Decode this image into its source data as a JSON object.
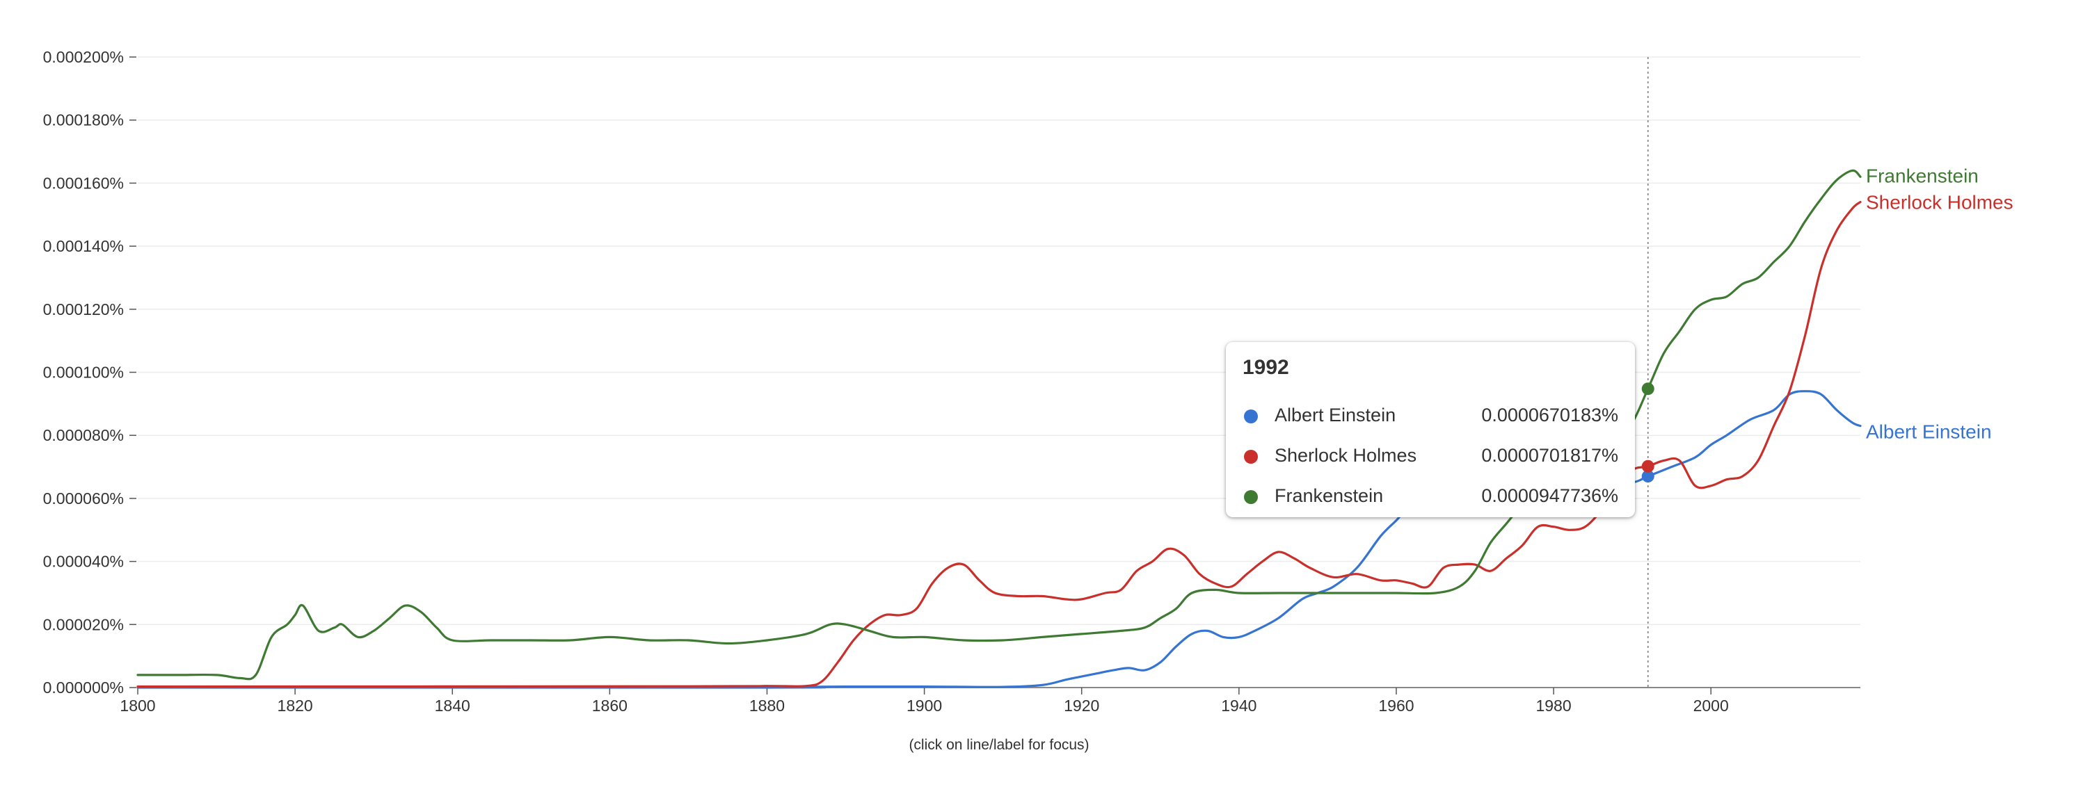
{
  "chart_data": {
    "type": "line",
    "x_range": [
      1800,
      2019
    ],
    "ylim": [
      0,
      0.0002
    ],
    "y_ticks": [
      "0.000200%",
      "0.000180%",
      "0.000160%",
      "0.000140%",
      "0.000120%",
      "0.000100%",
      "0.000080%",
      "0.000060%",
      "0.000040%",
      "0.000020%",
      "0.000000%"
    ],
    "x_ticks": [
      "1800",
      "1820",
      "1840",
      "1860",
      "1880",
      "1900",
      "1920",
      "1940",
      "1960",
      "1980",
      "2000"
    ],
    "grid": "horizontal",
    "focus_year": 1992,
    "note": "(click on line/label for focus)",
    "series": [
      {
        "name": "Albert Einstein",
        "color": "#3674d1",
        "points": [
          [
            1800,
            0
          ],
          [
            1880,
            0
          ],
          [
            1885,
            2e-07
          ],
          [
            1890,
            3e-07
          ],
          [
            1900,
            3e-07
          ],
          [
            1910,
            2e-07
          ],
          [
            1915,
            8e-07
          ],
          [
            1918,
            2.5e-06
          ],
          [
            1920,
            3.5e-06
          ],
          [
            1922,
            4.5e-06
          ],
          [
            1924,
            5.5e-06
          ],
          [
            1926,
            6.2e-06
          ],
          [
            1928,
            5.5e-06
          ],
          [
            1930,
            8e-06
          ],
          [
            1932,
            1.3e-05
          ],
          [
            1934,
            1.7e-05
          ],
          [
            1936,
            1.8e-05
          ],
          [
            1938,
            1.6e-05
          ],
          [
            1940,
            1.6e-05
          ],
          [
            1942,
            1.8e-05
          ],
          [
            1945,
            2.2e-05
          ],
          [
            1948,
            2.8e-05
          ],
          [
            1950,
            3e-05
          ],
          [
            1952,
            3.2e-05
          ],
          [
            1955,
            3.8e-05
          ],
          [
            1958,
            4.8e-05
          ],
          [
            1960,
            5.3e-05
          ],
          [
            1962,
            5.8e-05
          ],
          [
            1965,
            6e-05
          ],
          [
            1970,
            6e-05
          ],
          [
            1975,
            6.1e-05
          ],
          [
            1980,
            6.2e-05
          ],
          [
            1985,
            6.3e-05
          ],
          [
            1990,
            6.5e-05
          ],
          [
            1992,
            6.70183e-05
          ],
          [
            1995,
            7e-05
          ],
          [
            1998,
            7.3e-05
          ],
          [
            2000,
            7.7e-05
          ],
          [
            2002,
            8e-05
          ],
          [
            2005,
            8.5e-05
          ],
          [
            2008,
            8.8e-05
          ],
          [
            2010,
            9.3e-05
          ],
          [
            2012,
            9.4e-05
          ],
          [
            2014,
            9.3e-05
          ],
          [
            2016,
            8.8e-05
          ],
          [
            2018,
            8.4e-05
          ],
          [
            2019,
            8.3e-05
          ]
        ]
      },
      {
        "name": "Sherlock Holmes",
        "color": "#c9302c",
        "points": [
          [
            1800,
            3e-07
          ],
          [
            1870,
            4e-07
          ],
          [
            1880,
            5e-07
          ],
          [
            1885,
            5e-07
          ],
          [
            1887,
            2e-06
          ],
          [
            1889,
            8e-06
          ],
          [
            1891,
            1.5e-05
          ],
          [
            1893,
            2e-05
          ],
          [
            1895,
            2.3e-05
          ],
          [
            1897,
            2.3e-05
          ],
          [
            1899,
            2.5e-05
          ],
          [
            1901,
            3.3e-05
          ],
          [
            1903,
            3.8e-05
          ],
          [
            1905,
            3.9e-05
          ],
          [
            1907,
            3.4e-05
          ],
          [
            1909,
            3e-05
          ],
          [
            1912,
            2.9e-05
          ],
          [
            1915,
            2.9e-05
          ],
          [
            1918,
            2.8e-05
          ],
          [
            1920,
            2.8e-05
          ],
          [
            1923,
            3e-05
          ],
          [
            1925,
            3.1e-05
          ],
          [
            1927,
            3.7e-05
          ],
          [
            1929,
            4e-05
          ],
          [
            1931,
            4.4e-05
          ],
          [
            1933,
            4.2e-05
          ],
          [
            1935,
            3.6e-05
          ],
          [
            1937,
            3.3e-05
          ],
          [
            1939,
            3.2e-05
          ],
          [
            1941,
            3.6e-05
          ],
          [
            1943,
            4e-05
          ],
          [
            1945,
            4.3e-05
          ],
          [
            1947,
            4.1e-05
          ],
          [
            1949,
            3.8e-05
          ],
          [
            1952,
            3.5e-05
          ],
          [
            1955,
            3.6e-05
          ],
          [
            1958,
            3.4e-05
          ],
          [
            1960,
            3.4e-05
          ],
          [
            1962,
            3.3e-05
          ],
          [
            1964,
            3.2e-05
          ],
          [
            1966,
            3.8e-05
          ],
          [
            1968,
            3.9e-05
          ],
          [
            1970,
            3.9e-05
          ],
          [
            1972,
            3.7e-05
          ],
          [
            1974,
            4.1e-05
          ],
          [
            1976,
            4.5e-05
          ],
          [
            1978,
            5.1e-05
          ],
          [
            1980,
            5.1e-05
          ],
          [
            1982,
            5e-05
          ],
          [
            1984,
            5.1e-05
          ],
          [
            1986,
            5.6e-05
          ],
          [
            1988,
            6.3e-05
          ],
          [
            1990,
            6.9e-05
          ],
          [
            1992,
            7.01817e-05
          ],
          [
            1994,
            7.2e-05
          ],
          [
            1996,
            7.2e-05
          ],
          [
            1998,
            6.4e-05
          ],
          [
            2000,
            6.4e-05
          ],
          [
            2002,
            6.6e-05
          ],
          [
            2004,
            6.7e-05
          ],
          [
            2006,
            7.2e-05
          ],
          [
            2008,
            8.3e-05
          ],
          [
            2010,
            9.4e-05
          ],
          [
            2012,
            0.000112
          ],
          [
            2014,
            0.000133
          ],
          [
            2016,
            0.000145
          ],
          [
            2018,
            0.000152
          ],
          [
            2019,
            0.000154
          ]
        ]
      },
      {
        "name": "Frankenstein",
        "color": "#3f7a33",
        "points": [
          [
            1800,
            4e-06
          ],
          [
            1805,
            4e-06
          ],
          [
            1810,
            4e-06
          ],
          [
            1813,
            3e-06
          ],
          [
            1815,
            4e-06
          ],
          [
            1817,
            1.6e-05
          ],
          [
            1819,
            2e-05
          ],
          [
            1820,
            2.3e-05
          ],
          [
            1821,
            2.6e-05
          ],
          [
            1823,
            1.8e-05
          ],
          [
            1825,
            1.9e-05
          ],
          [
            1826,
            2e-05
          ],
          [
            1828,
            1.6e-05
          ],
          [
            1830,
            1.8e-05
          ],
          [
            1832,
            2.2e-05
          ],
          [
            1834,
            2.6e-05
          ],
          [
            1836,
            2.4e-05
          ],
          [
            1838,
            1.9e-05
          ],
          [
            1840,
            1.5e-05
          ],
          [
            1845,
            1.5e-05
          ],
          [
            1850,
            1.5e-05
          ],
          [
            1855,
            1.5e-05
          ],
          [
            1860,
            1.6e-05
          ],
          [
            1865,
            1.5e-05
          ],
          [
            1870,
            1.5e-05
          ],
          [
            1875,
            1.4e-05
          ],
          [
            1880,
            1.5e-05
          ],
          [
            1885,
            1.7e-05
          ],
          [
            1888,
            2e-05
          ],
          [
            1890,
            2e-05
          ],
          [
            1893,
            1.8e-05
          ],
          [
            1896,
            1.6e-05
          ],
          [
            1900,
            1.6e-05
          ],
          [
            1905,
            1.5e-05
          ],
          [
            1910,
            1.5e-05
          ],
          [
            1915,
            1.6e-05
          ],
          [
            1920,
            1.7e-05
          ],
          [
            1925,
            1.8e-05
          ],
          [
            1928,
            1.9e-05
          ],
          [
            1930,
            2.2e-05
          ],
          [
            1932,
            2.5e-05
          ],
          [
            1934,
            3e-05
          ],
          [
            1937,
            3.1e-05
          ],
          [
            1940,
            3e-05
          ],
          [
            1945,
            3e-05
          ],
          [
            1950,
            3e-05
          ],
          [
            1955,
            3e-05
          ],
          [
            1960,
            3e-05
          ],
          [
            1965,
            3e-05
          ],
          [
            1968,
            3.2e-05
          ],
          [
            1970,
            3.7e-05
          ],
          [
            1972,
            4.6e-05
          ],
          [
            1974,
            5.2e-05
          ],
          [
            1976,
            5.8e-05
          ],
          [
            1978,
            6.2e-05
          ],
          [
            1980,
            6.5e-05
          ],
          [
            1983,
            6.8e-05
          ],
          [
            1986,
            7.4e-05
          ],
          [
            1988,
            7.9e-05
          ],
          [
            1990,
            8.4e-05
          ],
          [
            1992,
            9.47736e-05
          ],
          [
            1994,
            0.000106
          ],
          [
            1996,
            0.000113
          ],
          [
            1998,
            0.00012
          ],
          [
            2000,
            0.000123
          ],
          [
            2002,
            0.000124
          ],
          [
            2004,
            0.000128
          ],
          [
            2006,
            0.00013
          ],
          [
            2008,
            0.000135
          ],
          [
            2010,
            0.00014
          ],
          [
            2012,
            0.000148
          ],
          [
            2014,
            0.000155
          ],
          [
            2016,
            0.000161
          ],
          [
            2018,
            0.000164
          ],
          [
            2019,
            0.000162
          ]
        ]
      }
    ],
    "tooltip": {
      "year": "1992",
      "rows": [
        {
          "name": "Albert Einstein",
          "value": "0.0000670183%",
          "color": "#3674d1"
        },
        {
          "name": "Sherlock Holmes",
          "value": "0.0000701817%",
          "color": "#c9302c"
        },
        {
          "name": "Frankenstein",
          "value": "0.0000947736%",
          "color": "#3f7a33"
        }
      ]
    }
  }
}
